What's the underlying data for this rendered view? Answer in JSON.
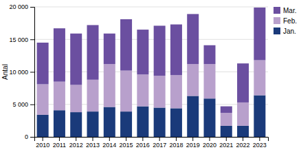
{
  "chart_data": {
    "type": "bar",
    "stacked": true,
    "categories": [
      "2010",
      "2011",
      "2012",
      "2013",
      "2014",
      "2015",
      "2016",
      "2017",
      "2018",
      "2019",
      "2020",
      "2021",
      "2022",
      "2023"
    ],
    "series": [
      {
        "name": "Jan.",
        "color": "#1a3a7a",
        "values": [
          3400,
          4100,
          3800,
          3900,
          4600,
          3900,
          4700,
          4500,
          4400,
          6300,
          5900,
          1700,
          1700,
          6400
        ]
      },
      {
        "name": "Feb.",
        "color": "#b8a0cc",
        "values": [
          4700,
          4400,
          4200,
          4900,
          6600,
          6300,
          4900,
          4900,
          5100,
          4900,
          5300,
          2000,
          3600,
          5400
        ]
      },
      {
        "name": "Mar.",
        "color": "#6b4fa0",
        "values": [
          6400,
          8200,
          7900,
          8400,
          4700,
          7900,
          6900,
          7700,
          7800,
          7700,
          2900,
          1000,
          6000,
          8100
        ]
      }
    ],
    "ylabel": "Antal",
    "ylim": [
      0,
      20000
    ],
    "yticks": [
      0,
      {
        "value": 5000,
        "label": "5 000"
      },
      {
        "value": 10000,
        "label": "10 000"
      },
      {
        "value": 15000,
        "label": "15 000"
      },
      {
        "value": 20000,
        "label": "20 000"
      }
    ],
    "grid": true,
    "legend": "upper right"
  }
}
